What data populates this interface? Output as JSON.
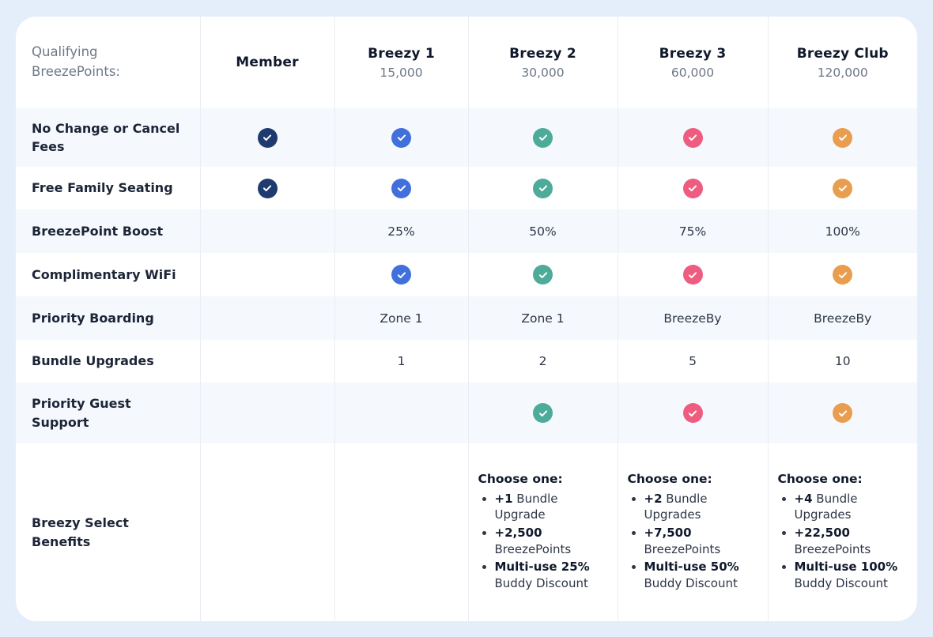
{
  "page": {
    "background_color": "#e4eefa",
    "card_background_color": "#ffffff",
    "stripe_row_color": "#f5f9fd",
    "divider_color": "#e9edf4"
  },
  "header": {
    "corner_label_line1": "Qualifying",
    "corner_label_line2": "BreezePoints:",
    "columns": [
      {
        "id": "member",
        "label": "Member",
        "points": "",
        "accent": "#1e3a6f"
      },
      {
        "id": "breezy-1",
        "label": "Breezy 1",
        "points": "15,000",
        "accent": "#4170dd"
      },
      {
        "id": "breezy-2",
        "label": "Breezy 2",
        "points": "30,000",
        "accent": "#4dab99"
      },
      {
        "id": "breezy-3",
        "label": "Breezy 3",
        "points": "60,000",
        "accent": "#ee5c80"
      },
      {
        "id": "breezy-club",
        "label": "Breezy Club",
        "points": "120,000",
        "accent": "#e99d4f"
      }
    ]
  },
  "icons": {
    "check": "check-circle-icon"
  },
  "rows": [
    {
      "label": "No Change or Cancel Fees",
      "cells": [
        "check",
        "check",
        "check",
        "check",
        "check"
      ]
    },
    {
      "label": "Free Family Seating",
      "cells": [
        "check",
        "check",
        "check",
        "check",
        "check"
      ]
    },
    {
      "label": "BreezePoint Boost",
      "cells": [
        "",
        "25%",
        "50%",
        "75%",
        "100%"
      ]
    },
    {
      "label": "Complimentary WiFi",
      "cells": [
        "",
        "check",
        "check",
        "check",
        "check"
      ]
    },
    {
      "label": "Priority Boarding",
      "cells": [
        "",
        "Zone 1",
        "Zone 1",
        "BreezeBy",
        "BreezeBy"
      ]
    },
    {
      "label": "Bundle Upgrades",
      "cells": [
        "",
        "1",
        "2",
        "5",
        "10"
      ]
    },
    {
      "label": "Priority Guest Support",
      "cells": [
        "",
        "",
        "check",
        "check",
        "check"
      ]
    },
    {
      "label": "Breezy Select Benefits",
      "cells": [
        "",
        "",
        {
          "heading": "Choose one:",
          "items": [
            {
              "bold": "+1",
              "rest": " Bundle Upgrade"
            },
            {
              "bold": "+2,500",
              "rest": " BreezePoints"
            },
            {
              "bold": "Multi-use 25%",
              "rest": " Buddy Discount"
            }
          ]
        },
        {
          "heading": "Choose one:",
          "items": [
            {
              "bold": "+2",
              "rest": " Bundle Upgrades"
            },
            {
              "bold": "+7,500",
              "rest": " BreezePoints"
            },
            {
              "bold": "Multi-use 50%",
              "rest": " Buddy Discount"
            }
          ]
        },
        {
          "heading": "Choose one:",
          "items": [
            {
              "bold": "+4",
              "rest": " Bundle Upgrades"
            },
            {
              "bold": "+22,500",
              "rest": " BreezePoints"
            },
            {
              "bold": "Multi-use 100%",
              "rest": " Buddy Discount"
            }
          ]
        }
      ]
    }
  ]
}
